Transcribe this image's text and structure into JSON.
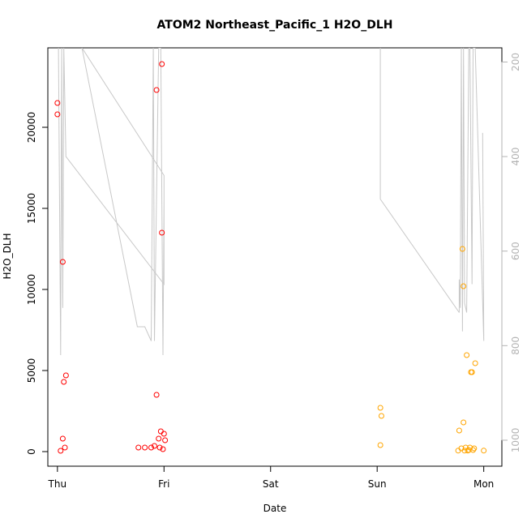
{
  "chart_data": {
    "type": "scatter",
    "title": "ATOM2 Northeast_Pacific_1 H2O_DLH",
    "xlabel": "Date",
    "ylabel": "H2O_DLH",
    "x_ticks": [
      {
        "label": "Thu",
        "day": 0
      },
      {
        "label": "Fri",
        "day": 1
      },
      {
        "label": "Sat",
        "day": 2
      },
      {
        "label": "Sun",
        "day": 3
      },
      {
        "label": "Mon",
        "day": 4
      }
    ],
    "xlim": [
      -0.09,
      4.17
    ],
    "y_ticks": [
      0,
      5000,
      10000,
      15000,
      20000
    ],
    "ylim": [
      -900,
      24900
    ],
    "right_axis": {
      "color": "#b3b3b3",
      "ticks": [
        200,
        400,
        600,
        800,
        1000
      ],
      "ylim_top": 170,
      "ylim_bottom": 1055
    },
    "series": [
      {
        "color": "#ff0000",
        "points": [
          [
            0.0,
            21500
          ],
          [
            0.0,
            20800
          ],
          [
            0.03,
            50
          ],
          [
            0.05,
            11700
          ],
          [
            0.05,
            800
          ],
          [
            0.06,
            4300
          ],
          [
            0.08,
            4700
          ],
          [
            0.07,
            250
          ],
          [
            0.76,
            250
          ],
          [
            0.82,
            250
          ],
          [
            0.88,
            250
          ],
          [
            0.91,
            350
          ],
          [
            0.93,
            22300
          ],
          [
            0.93,
            3500
          ],
          [
            0.95,
            800
          ],
          [
            0.96,
            250
          ],
          [
            0.97,
            1250
          ],
          [
            0.98,
            23900
          ],
          [
            0.98,
            13500
          ],
          [
            0.99,
            150
          ],
          [
            1.0,
            1100
          ],
          [
            1.01,
            700
          ]
        ]
      },
      {
        "color": "#ffa500",
        "points": [
          [
            3.03,
            2700
          ],
          [
            3.03,
            400
          ],
          [
            3.04,
            2200
          ],
          [
            3.76,
            60
          ],
          [
            3.77,
            1300
          ],
          [
            3.79,
            200
          ],
          [
            3.8,
            12500
          ],
          [
            3.81,
            10200
          ],
          [
            3.81,
            1800
          ],
          [
            3.82,
            60
          ],
          [
            3.83,
            250
          ],
          [
            3.84,
            5950
          ],
          [
            3.85,
            60
          ],
          [
            3.86,
            100
          ],
          [
            3.87,
            250
          ],
          [
            3.88,
            4900
          ],
          [
            3.89,
            4900
          ],
          [
            3.9,
            100
          ],
          [
            3.91,
            200
          ],
          [
            3.92,
            5450
          ],
          [
            4.0,
            60
          ]
        ]
      }
    ],
    "line": {
      "color": "#c8c8c8",
      "axis": "right",
      "points": [
        [
          0.01,
          170
        ],
        [
          0.03,
          820
        ],
        [
          0.04,
          170
        ],
        [
          0.05,
          720
        ],
        [
          0.06,
          170
        ],
        [
          0.08,
          400
        ],
        [
          1.0,
          670
        ],
        [
          1.0,
          440
        ],
        [
          0.23,
          170
        ],
        [
          0.75,
          760
        ],
        [
          0.82,
          760
        ],
        [
          0.88,
          790
        ],
        [
          0.9,
          170
        ],
        [
          0.91,
          790
        ],
        [
          0.95,
          170
        ],
        [
          0.97,
          170
        ],
        [
          0.99,
          820
        ],
        [
          1.0,
          490
        ]
      ],
      "extra_segments": [
        [
          [
            3.03,
            170
          ],
          [
            3.03,
            490
          ],
          [
            3.77,
            730
          ]
        ],
        [
          [
            3.77,
            730
          ],
          [
            3.77,
            660
          ],
          [
            3.78,
            720
          ],
          [
            3.79,
            170
          ],
          [
            3.8,
            770
          ],
          [
            3.81,
            170
          ],
          [
            3.82,
            710
          ],
          [
            3.84,
            730
          ],
          [
            3.86,
            170
          ],
          [
            3.87,
            170
          ],
          [
            3.89,
            670
          ],
          [
            3.9,
            170
          ],
          [
            3.92,
            170
          ],
          [
            4.0,
            790
          ],
          [
            3.99,
            350
          ]
        ]
      ]
    }
  }
}
